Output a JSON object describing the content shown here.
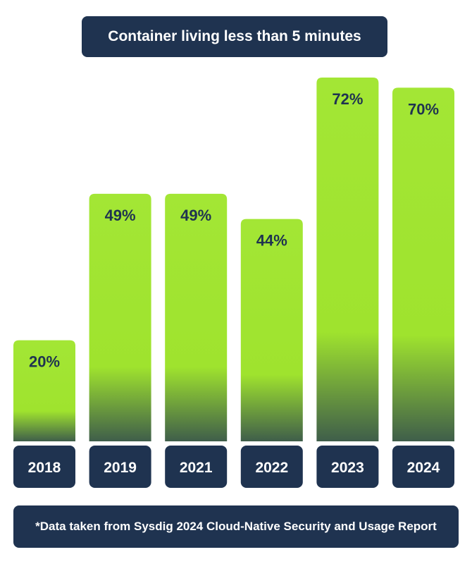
{
  "chart_data": {
    "type": "bar",
    "title": "Container living less than 5 minutes",
    "categories": [
      "2018",
      "2019",
      "2021",
      "2022",
      "2023",
      "2024"
    ],
    "values": [
      20,
      49,
      49,
      44,
      72,
      70
    ],
    "value_labels": [
      "20%",
      "49%",
      "49%",
      "44%",
      "72%",
      "70%"
    ],
    "ylim": [
      0,
      72
    ],
    "xlabel": "",
    "ylabel": "",
    "grid": false,
    "legend": "none",
    "colors": {
      "bar_top": "#a3e635",
      "bar_mid": "#9fe32e",
      "bar_bottom": "#3f5e4a",
      "label_box": "#1f3350",
      "label_text": "#ffffff",
      "value_text": "#1f3350"
    }
  },
  "footnote": "*Data taken from Sysdig 2024 Cloud-Native Security and Usage Report"
}
